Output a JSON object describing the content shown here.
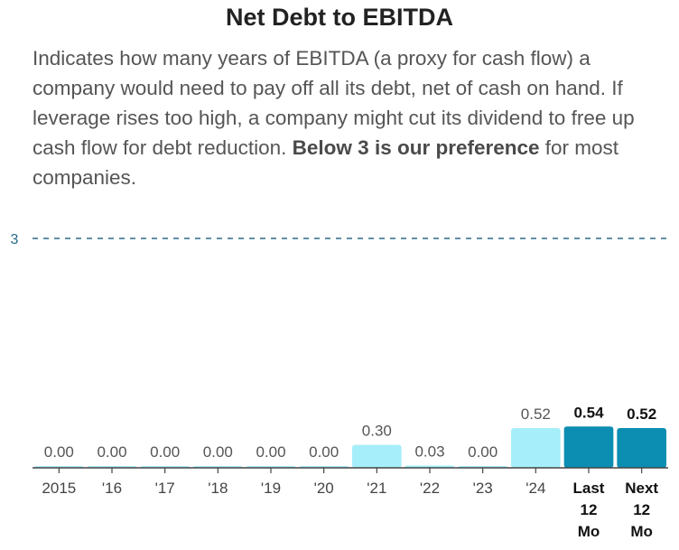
{
  "title": "Net Debt to EBITDA",
  "description": {
    "text_before": "Indicates how many years of EBITDA (a proxy for cash flow) a company would need to pay off all its debt, net of cash on hand. If leverage rises too high, a company might cut its dividend to free up cash flow for debt reduction.",
    "emphasis": "Below 3 is our preference",
    "text_after": "for most companies."
  },
  "colors": {
    "historical": "#a6eef9",
    "current": "#0b8eb1",
    "reference_line": "#2a6a86",
    "axis": "#444444"
  },
  "chart_data": {
    "type": "bar",
    "title": "Net Debt to EBITDA",
    "xlabel": "",
    "ylabel": "",
    "ylim": [
      0,
      3
    ],
    "reference_line": {
      "value": 3,
      "label": "3"
    },
    "categories": [
      {
        "label": "2015",
        "value": 0.0,
        "value_label": "0.00",
        "highlight": false
      },
      {
        "label": "'16",
        "value": 0.0,
        "value_label": "0.00",
        "highlight": false
      },
      {
        "label": "'17",
        "value": 0.0,
        "value_label": "0.00",
        "highlight": false
      },
      {
        "label": "'18",
        "value": 0.0,
        "value_label": "0.00",
        "highlight": false
      },
      {
        "label": "'19",
        "value": 0.0,
        "value_label": "0.00",
        "highlight": false
      },
      {
        "label": "'20",
        "value": 0.0,
        "value_label": "0.00",
        "highlight": false
      },
      {
        "label": "'21",
        "value": 0.3,
        "value_label": "0.30",
        "highlight": false
      },
      {
        "label": "'22",
        "value": 0.03,
        "value_label": "0.03",
        "highlight": false
      },
      {
        "label": "'23",
        "value": 0.0,
        "value_label": "0.00",
        "highlight": false
      },
      {
        "label": "'24",
        "value": 0.52,
        "value_label": "0.52",
        "highlight": false
      },
      {
        "label": "Last 12 Mo",
        "value": 0.54,
        "value_label": "0.54",
        "highlight": true
      },
      {
        "label": "Next 12 Mo",
        "value": 0.52,
        "value_label": "0.52",
        "highlight": true
      }
    ]
  }
}
